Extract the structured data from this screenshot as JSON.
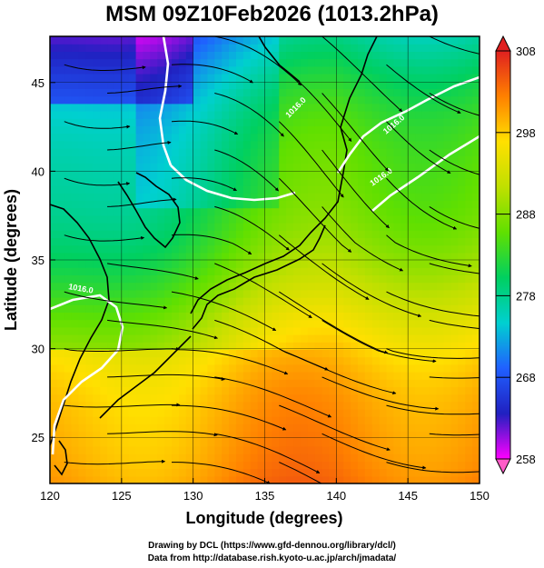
{
  "title": "MSM 09Z10Feb2026 (1013.2hPa)",
  "chart_data": {
    "type": "heatmap",
    "title": "MSM 09Z10Feb2026 (1013.2hPa)",
    "xlabel": "Longitude (degrees)",
    "ylabel": "Latitude  (degrees)",
    "xlim": [
      120,
      150
    ],
    "ylim": [
      22.4,
      47.6
    ],
    "xticks": [
      "120",
      "125",
      "130",
      "135",
      "140",
      "145",
      "150"
    ],
    "yticks": [
      "25",
      "30",
      "35",
      "40",
      "45"
    ],
    "colorbar": {
      "ticks": [
        "258",
        "268",
        "278",
        "288",
        "298",
        "308"
      ],
      "min": 258,
      "max": 308,
      "colors": [
        "#ff00ff",
        "#2020c0",
        "#2060ff",
        "#00d0d0",
        "#00d060",
        "#60e000",
        "#c0e000",
        "#ffe000",
        "#ff8000",
        "#e02020"
      ]
    },
    "contours": [
      {
        "label": "1016.0"
      },
      {
        "label": "1016.0"
      },
      {
        "label": "1016.0"
      },
      {
        "label": "1016.0"
      }
    ],
    "overlays": [
      "temperature-shading",
      "streamlines",
      "isobars",
      "coastlines"
    ]
  },
  "credits": {
    "line1": "Drawing by DCL (https://www.gfd-dennou.org/library/dcl/)",
    "line2": "Data from http://database.rish.kyoto-u.ac.jp/arch/jmadata/"
  }
}
